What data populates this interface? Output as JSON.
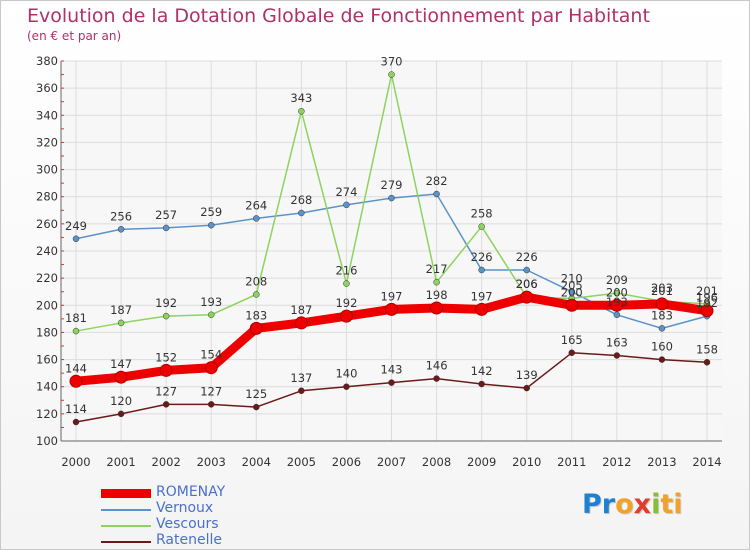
{
  "title": "Evolution de la Dotation Globale de Fonctionnement par Habitant",
  "subtitle": "(en € et par an)",
  "logo": {
    "p1": "Pr",
    "p2": "o",
    "p3": "x",
    "p4": "i",
    "p5": "ti"
  },
  "chart_data": {
    "type": "line",
    "x": [
      2000,
      2001,
      2002,
      2003,
      2004,
      2005,
      2006,
      2007,
      2008,
      2009,
      2010,
      2011,
      2012,
      2013,
      2014
    ],
    "ylim": [
      100,
      380
    ],
    "yticks": [
      100,
      120,
      140,
      160,
      180,
      200,
      220,
      240,
      260,
      280,
      300,
      320,
      340,
      360,
      380
    ],
    "grid": true,
    "legend": "bottom-left",
    "series": [
      {
        "name": "Ratenelle",
        "color": "#6b1a1a",
        "values": [
          114,
          120,
          127,
          127,
          125,
          137,
          140,
          143,
          146,
          142,
          139,
          165,
          163,
          160,
          158
        ]
      },
      {
        "name": "Vernoux",
        "color": "#5b93c8",
        "values": [
          249,
          256,
          257,
          259,
          264,
          268,
          274,
          279,
          282,
          226,
          226,
          210,
          193,
          183,
          192
        ]
      },
      {
        "name": "Vescours",
        "color": "#8dd35f",
        "values": [
          181,
          187,
          192,
          193,
          208,
          343,
          216,
          370,
          217,
          258,
          206,
          205,
          209,
          203,
          201
        ]
      },
      {
        "name": "ROMENAY",
        "color": "#ee0000",
        "values": [
          144,
          147,
          152,
          154,
          183,
          187,
          192,
          197,
          198,
          197,
          206,
          200,
          200,
          201,
          196
        ]
      }
    ],
    "labels": [
      {
        "series": "Ratenelle",
        "values": [
          "114",
          "120",
          "127",
          "127",
          "125",
          "137",
          "140",
          "143",
          "146",
          "142",
          "139",
          "165",
          "163",
          "160",
          "158"
        ]
      },
      {
        "series": "Vernoux",
        "values": [
          "249",
          "256",
          "257",
          "259",
          "264",
          "268",
          "274",
          "279",
          "282",
          "226",
          "226",
          "210",
          "193",
          "183",
          "192"
        ]
      },
      {
        "series": "Vescours",
        "values": [
          "181",
          "187",
          "192",
          "193",
          "208",
          "343",
          "216",
          "370",
          "217",
          "258",
          "206",
          "205",
          "209",
          "203",
          "201"
        ]
      },
      {
        "series": "ROMENAY",
        "values": [
          "144",
          "147",
          "152",
          "154",
          "183",
          "187",
          "192",
          "197",
          "198",
          "197",
          "206",
          "200",
          "200",
          "201",
          "196"
        ]
      }
    ],
    "legend_entries": [
      {
        "name": "ROMENAY",
        "color": "#ee0000"
      },
      {
        "name": "Vernoux",
        "color": "#5b93c8"
      },
      {
        "name": "Vescours",
        "color": "#8dd35f"
      },
      {
        "name": "Ratenelle",
        "color": "#6b1a1a"
      }
    ]
  }
}
